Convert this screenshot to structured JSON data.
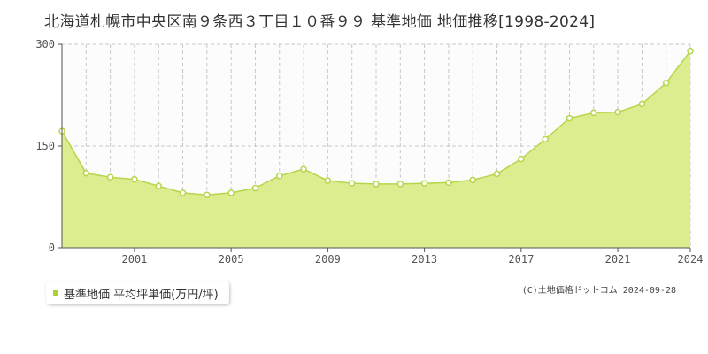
{
  "colors": {
    "fill": "#dbed8f",
    "line": "#b5d64c",
    "point_fill": "#ffffff",
    "point_stroke": "#b5d64c",
    "legend_swatch": "#a8d43a"
  },
  "legend": {
    "label": "基準地価 平均坪単価(万円/坪)"
  },
  "copyright": "(C)土地価格ドットコム 2024-09-28",
  "chart_data": {
    "type": "area",
    "title": "北海道札幌市中央区南９条西３丁目１０番９９ 基準地価 地価推移[1998-2024]",
    "x": [
      1998,
      1999,
      2000,
      2001,
      2002,
      2003,
      2004,
      2005,
      2006,
      2007,
      2008,
      2009,
      2010,
      2011,
      2012,
      2013,
      2014,
      2015,
      2016,
      2017,
      2018,
      2019,
      2020,
      2021,
      2022,
      2023,
      2024
    ],
    "series": [
      {
        "name": "基準地価 平均坪単価(万円/坪)",
        "values": [
          172,
          110,
          104,
          101,
          91,
          81,
          78,
          81,
          88,
          106,
          116,
          99,
          95,
          94,
          94,
          95,
          96,
          100,
          109,
          131,
          160,
          191,
          199,
          200,
          212,
          243,
          290
        ]
      }
    ],
    "ylim": [
      0,
      300
    ],
    "yticks": [
      0,
      150,
      300
    ],
    "xticks": [
      2001,
      2005,
      2009,
      2013,
      2017,
      2021,
      2024
    ],
    "xlim": [
      1998,
      2024
    ],
    "grid": true,
    "legend_position": "bottom-left"
  }
}
